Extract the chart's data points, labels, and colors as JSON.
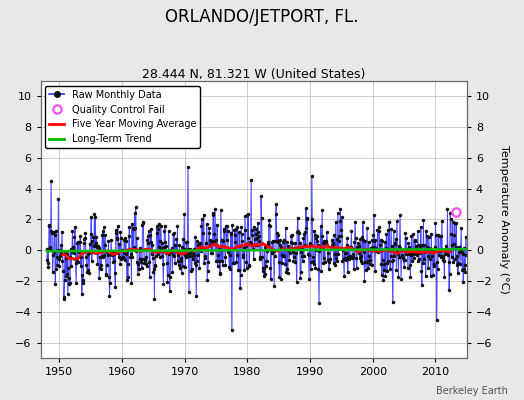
{
  "title": "ORLANDO/JETPORT, FL.",
  "subtitle": "28.444 N, 81.321 W (United States)",
  "ylabel": "Temperature Anomaly (°C)",
  "xlim": [
    1947,
    2015
  ],
  "ylim": [
    -7,
    11
  ],
  "yticks": [
    -6,
    -4,
    -2,
    0,
    2,
    4,
    6,
    8,
    10
  ],
  "xticks": [
    1950,
    1960,
    1970,
    1980,
    1990,
    2000,
    2010
  ],
  "bg_color": "#e8e8e8",
  "plot_bg_color": "#ffffff",
  "grid_color": "#bbbbbb",
  "line_color_raw": "#3333ff",
  "line_color_raw_stem": "#8888ff",
  "line_color_moving_avg": "#ff0000",
  "line_color_trend": "#00bb00",
  "dot_color": "#111111",
  "qc_fail_color": "#ff44ff",
  "attribution": "Berkeley Earth",
  "seed": 12345,
  "start_year": 1948,
  "end_year": 2014,
  "qc_year": 2013.25,
  "qc_val": 2.5
}
